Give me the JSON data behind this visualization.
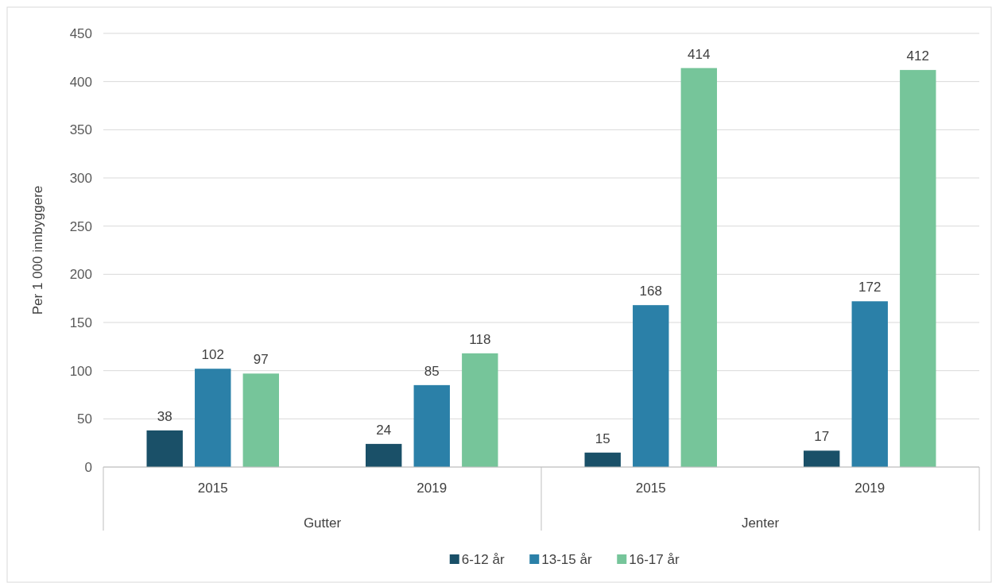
{
  "chart_data": {
    "type": "bar",
    "ylabel": "Per 1 000 innbyggere",
    "categories": [
      "2015",
      "2019",
      "2015",
      "2019"
    ],
    "annotations": [
      "Gutter",
      "Jenter"
    ],
    "series": [
      {
        "name": "6-12 år",
        "color": "#1a5068",
        "values": [
          38,
          24,
          15,
          17
        ]
      },
      {
        "name": "13-15 år",
        "color": "#2b80a8",
        "values": [
          102,
          85,
          168,
          172
        ]
      },
      {
        "name": "16-17 år",
        "color": "#76c59a",
        "values": [
          97,
          118,
          414,
          412
        ]
      }
    ],
    "ylim": [
      0,
      450
    ],
    "yticks": [
      0,
      50,
      100,
      150,
      200,
      250,
      300,
      350,
      400,
      450
    ],
    "grid": "y",
    "legend": "bottom",
    "data_labels": true
  }
}
